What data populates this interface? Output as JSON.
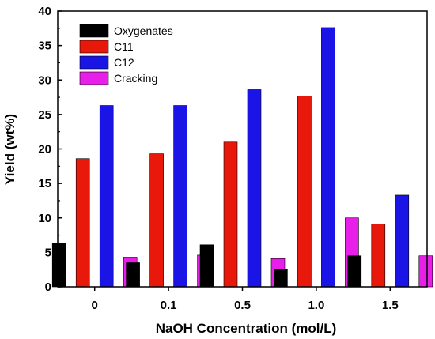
{
  "chart_data": {
    "type": "bar",
    "title": "",
    "xlabel": "NaOH Concentration (mol/L)",
    "ylabel": "Yield (wt%)",
    "categories": [
      "0",
      "0.1",
      "0.5",
      "1.0",
      "1.5"
    ],
    "ylim": [
      0,
      40
    ],
    "yticks": [
      0,
      5,
      10,
      15,
      20,
      25,
      30,
      35,
      40
    ],
    "legend_position": "top-left",
    "grid": false,
    "series": [
      {
        "name": "Oxygenates",
        "color": "#000000",
        "values": [
          6.3,
          3.5,
          6.1,
          2.5,
          4.5
        ]
      },
      {
        "name": "C11",
        "color": "#e8190a",
        "values": [
          18.6,
          19.3,
          21.0,
          27.7,
          9.1
        ]
      },
      {
        "name": "C12",
        "color": "#1a14e6",
        "values": [
          26.3,
          26.3,
          28.6,
          37.6,
          13.3
        ]
      },
      {
        "name": "Cracking",
        "color": "#e81fe8",
        "values": [
          4.3,
          4.6,
          4.1,
          10.0,
          4.5
        ]
      }
    ]
  }
}
